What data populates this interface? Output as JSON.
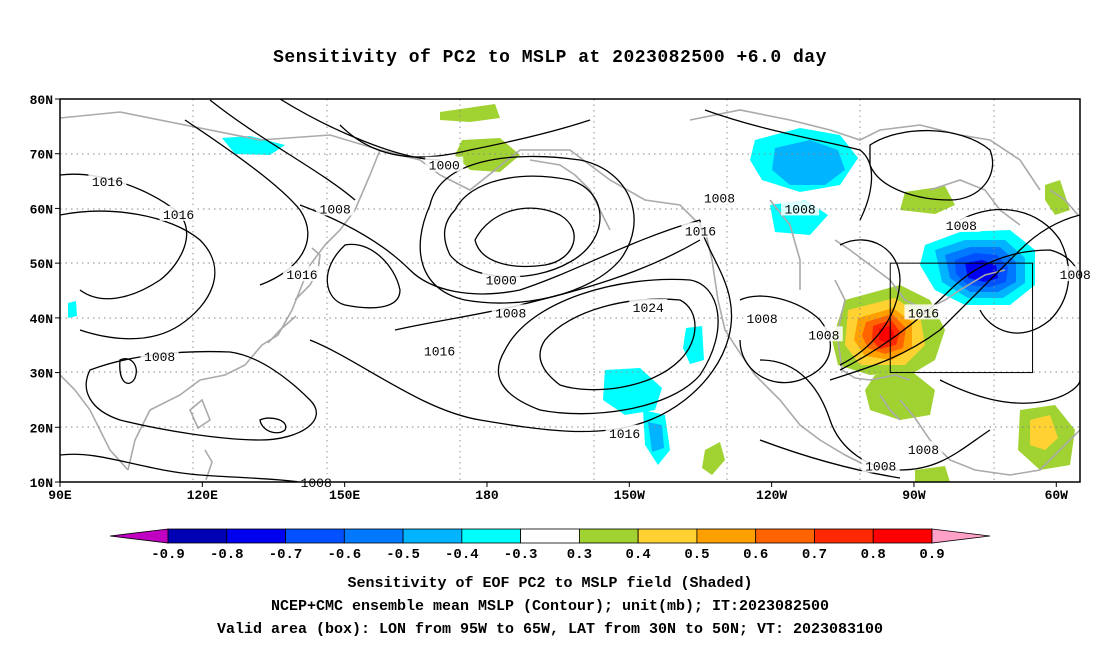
{
  "title": "Sensitivity of PC2 to MSLP at 2023082500 +6.0 day",
  "map": {
    "lat_ticks": [
      "80N",
      "70N",
      "60N",
      "50N",
      "40N",
      "30N",
      "20N",
      "10N"
    ],
    "lon_ticks": [
      "90E",
      "120E",
      "150E",
      "180",
      "150W",
      "120W",
      "90W",
      "60W"
    ],
    "lat_range": [
      10,
      80
    ],
    "lon_range_east": [
      90,
      305
    ],
    "grid": "dotted",
    "contour_labels": [
      {
        "text": "1016",
        "lon": 100,
        "lat": 65
      },
      {
        "text": "1016",
        "lon": 115,
        "lat": 59
      },
      {
        "text": "1000",
        "lon": 171,
        "lat": 68
      },
      {
        "text": "1008",
        "lon": 148,
        "lat": 60
      },
      {
        "text": "1000",
        "lon": 183,
        "lat": 47
      },
      {
        "text": "1008",
        "lon": 185,
        "lat": 41
      },
      {
        "text": "1016",
        "lon": 141,
        "lat": 48
      },
      {
        "text": "1016",
        "lon": 170,
        "lat": 34
      },
      {
        "text": "1024",
        "lon": 214,
        "lat": 42
      },
      {
        "text": "1008",
        "lon": 111,
        "lat": 33
      },
      {
        "text": "1008",
        "lon": 229,
        "lat": 62
      },
      {
        "text": "1016",
        "lon": 225,
        "lat": 56
      },
      {
        "text": "1008",
        "lon": 246,
        "lat": 60
      },
      {
        "text": "1008",
        "lon": 238,
        "lat": 40
      },
      {
        "text": "1008",
        "lon": 251,
        "lat": 37
      },
      {
        "text": "1016",
        "lon": 272,
        "lat": 41
      },
      {
        "text": "1008",
        "lon": 280,
        "lat": 57
      },
      {
        "text": "1008",
        "lon": 304,
        "lat": 48
      },
      {
        "text": "1016",
        "lon": 209,
        "lat": 19
      },
      {
        "text": "1008",
        "lon": 263,
        "lat": 13
      },
      {
        "text": "1008",
        "lon": 272,
        "lat": 16
      },
      {
        "text": "1008",
        "lon": 144,
        "lat": 10
      }
    ],
    "valid_box": {
      "lon": [
        265,
        295
      ],
      "lat": [
        30,
        50
      ]
    }
  },
  "colorbar": {
    "labels": [
      "-0.9",
      "-0.8",
      "-0.7",
      "-0.6",
      "-0.5",
      "-0.4",
      "-0.3",
      "0.3",
      "0.4",
      "0.5",
      "0.6",
      "0.7",
      "0.8",
      "0.9"
    ],
    "colors": [
      "#c000c0",
      "#0000b4",
      "#0000f0",
      "#0050ff",
      "#0078ff",
      "#00b4ff",
      "#00ffff",
      "#ffffff",
      "#a0d232",
      "#ffd232",
      "#ffa000",
      "#ff6400",
      "#ff2800",
      "#ff0000",
      "#ffa0c8"
    ]
  },
  "captions": {
    "line1": "Sensitivity of EOF PC2 to MSLP field (Shaded)",
    "line2": "NCEP+CMC ensemble mean MSLP (Contour); unit(mb); IT:2023082500",
    "line3": "Valid area (box): LON from 95W to 65W, LAT from 30N to 50N; VT: 2023083100"
  }
}
